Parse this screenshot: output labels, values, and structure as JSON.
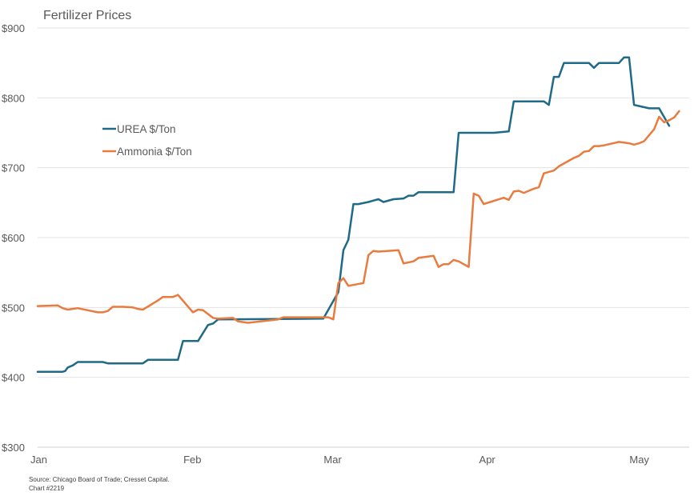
{
  "chart_data": {
    "type": "line",
    "title": "Fertilizer Prices",
    "xlabel": "",
    "ylabel": "",
    "ylim": [
      300,
      900
    ],
    "yticks": [
      300,
      400,
      500,
      600,
      700,
      800,
      900
    ],
    "ytick_labels": [
      "$300",
      "$400",
      "$500",
      "$600",
      "$700",
      "$800",
      "$900"
    ],
    "x_range_days": [
      0,
      130
    ],
    "xticks": [
      {
        "label": "Jan",
        "day": 0
      },
      {
        "label": "Feb",
        "day": 31
      },
      {
        "label": "Mar",
        "day": 59
      },
      {
        "label": "Apr",
        "day": 90
      },
      {
        "label": "May",
        "day": 120
      }
    ],
    "grid": true,
    "legend_position": "upper-left-inside",
    "series": [
      {
        "name": "UREA $/Ton",
        "color": "#1f6a86",
        "points": [
          [
            0,
            408
          ],
          [
            5,
            408
          ],
          [
            5.5,
            409
          ],
          [
            6,
            414
          ],
          [
            7,
            417
          ],
          [
            8,
            422
          ],
          [
            13,
            422
          ],
          [
            14,
            420
          ],
          [
            21,
            420
          ],
          [
            22,
            425
          ],
          [
            28,
            425
          ],
          [
            29,
            452
          ],
          [
            32,
            452
          ],
          [
            34,
            475
          ],
          [
            35,
            477
          ],
          [
            36,
            483
          ],
          [
            57,
            484
          ],
          [
            60,
            522
          ],
          [
            61,
            582
          ],
          [
            62,
            597
          ],
          [
            63,
            648
          ],
          [
            64,
            648
          ],
          [
            66,
            651
          ],
          [
            67,
            653
          ],
          [
            68,
            655
          ],
          [
            69,
            651
          ],
          [
            71,
            655
          ],
          [
            73,
            656
          ],
          [
            74,
            660
          ],
          [
            75,
            660
          ],
          [
            76,
            665
          ],
          [
            83,
            665
          ],
          [
            84,
            750
          ],
          [
            91,
            750
          ],
          [
            94,
            752
          ],
          [
            95,
            795
          ],
          [
            101,
            795
          ],
          [
            102,
            790
          ],
          [
            103,
            830
          ],
          [
            104,
            830
          ],
          [
            105,
            850
          ],
          [
            110,
            850
          ],
          [
            111,
            843
          ],
          [
            112,
            850
          ],
          [
            116,
            850
          ],
          [
            117,
            858
          ],
          [
            118,
            858
          ],
          [
            119,
            790
          ],
          [
            122,
            785
          ],
          [
            124,
            785
          ],
          [
            126,
            760
          ]
        ]
      },
      {
        "name": "Ammonia $/Ton",
        "color": "#e87b3d",
        "points": [
          [
            0,
            502
          ],
          [
            4,
            503
          ],
          [
            5,
            499
          ],
          [
            6,
            497
          ],
          [
            7,
            498
          ],
          [
            8,
            499
          ],
          [
            10,
            496
          ],
          [
            12,
            493
          ],
          [
            13,
            493
          ],
          [
            14,
            495
          ],
          [
            15,
            501
          ],
          [
            17,
            501
          ],
          [
            19,
            500
          ],
          [
            20,
            498
          ],
          [
            21,
            497
          ],
          [
            24,
            510
          ],
          [
            25,
            515
          ],
          [
            27,
            515
          ],
          [
            28,
            518
          ],
          [
            31,
            493
          ],
          [
            32,
            497
          ],
          [
            33,
            496
          ],
          [
            35,
            485
          ],
          [
            36,
            484
          ],
          [
            39,
            485
          ],
          [
            40,
            480
          ],
          [
            42,
            478
          ],
          [
            48,
            483
          ],
          [
            49,
            486
          ],
          [
            58,
            486
          ],
          [
            59,
            483
          ],
          [
            60,
            535
          ],
          [
            61,
            542
          ],
          [
            62,
            531
          ],
          [
            65,
            535
          ],
          [
            66,
            575
          ],
          [
            67,
            581
          ],
          [
            68,
            580
          ],
          [
            72,
            582
          ],
          [
            73,
            563
          ],
          [
            75,
            566
          ],
          [
            76,
            571
          ],
          [
            78,
            573
          ],
          [
            79,
            574
          ],
          [
            80,
            558
          ],
          [
            81,
            562
          ],
          [
            82,
            562
          ],
          [
            83,
            568
          ],
          [
            84,
            566
          ],
          [
            86,
            558
          ],
          [
            87,
            663
          ],
          [
            88,
            660
          ],
          [
            89,
            648
          ],
          [
            93,
            657
          ],
          [
            94,
            654
          ],
          [
            95,
            666
          ],
          [
            96,
            667
          ],
          [
            97,
            664
          ],
          [
            99,
            670
          ],
          [
            100,
            672
          ],
          [
            101,
            692
          ],
          [
            103,
            696
          ],
          [
            104,
            702
          ],
          [
            107,
            714
          ],
          [
            108,
            717
          ],
          [
            109,
            723
          ],
          [
            110,
            724
          ],
          [
            111,
            731
          ],
          [
            112,
            731
          ],
          [
            113,
            732
          ],
          [
            116,
            737
          ],
          [
            118,
            735
          ],
          [
            119,
            733
          ],
          [
            120,
            735
          ],
          [
            121,
            738
          ],
          [
            123,
            755
          ],
          [
            124,
            773
          ],
          [
            125,
            765
          ],
          [
            126,
            768
          ],
          [
            127,
            772
          ],
          [
            128,
            781
          ]
        ]
      }
    ]
  },
  "footer": {
    "source": "Source: Chicago Board of Trade; Cresset Capital.",
    "chart_number": "Chart #2219"
  }
}
